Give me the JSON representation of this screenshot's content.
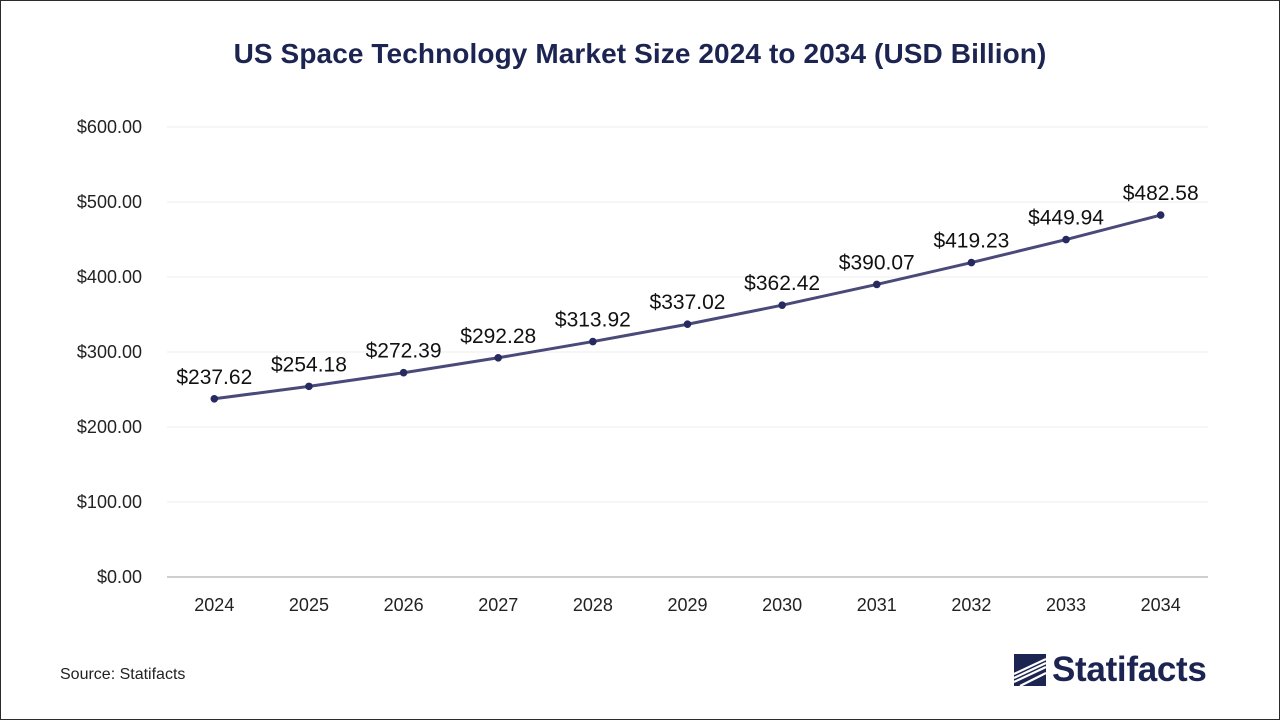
{
  "chart_data": {
    "type": "line",
    "title": "US Space Technology Market Size 2024 to 2034 (USD Billion)",
    "categories": [
      "2024",
      "2025",
      "2026",
      "2027",
      "2028",
      "2029",
      "2030",
      "2031",
      "2032",
      "2033",
      "2034"
    ],
    "values": [
      237.62,
      254.18,
      272.39,
      292.28,
      313.92,
      337.02,
      362.42,
      390.07,
      419.23,
      449.94,
      482.58
    ],
    "data_labels": [
      "$237.62",
      "$254.18",
      "$272.39",
      "$292.28",
      "$313.92",
      "$337.02",
      "$362.42",
      "$390.07",
      "$419.23",
      "$449.94",
      "$482.58"
    ],
    "y_ticks": [
      0,
      100,
      200,
      300,
      400,
      500,
      600
    ],
    "y_tick_labels": [
      "$0.00",
      "$100.00",
      "$200.00",
      "$300.00",
      "$400.00",
      "$500.00",
      "$600.00"
    ],
    "ylim": [
      0,
      600
    ],
    "xlabel": "",
    "ylabel": "",
    "grid": true,
    "line_color": "#4a4a7a",
    "marker_color": "#262a5e"
  },
  "source": "Source: Statifacts",
  "logo": {
    "text": "Statifacts",
    "icon": "statifacts-logo-icon",
    "color": "#1c2451"
  }
}
